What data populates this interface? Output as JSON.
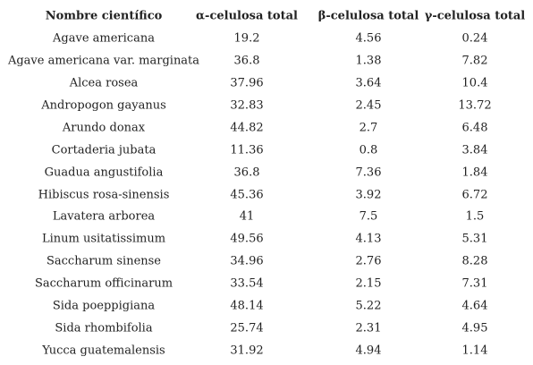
{
  "table": {
    "headers": [
      "Nombre científico",
      "α-celulosa total",
      "β-celulosa total",
      "γ-celulosa total"
    ],
    "rows": [
      [
        "Agave americana",
        "19.2",
        "4.56",
        "0.24"
      ],
      [
        "Agave americana var. marginata",
        "36.8",
        "1.38",
        "7.82"
      ],
      [
        "Alcea rosea",
        "37.96",
        "3.64",
        "10.4"
      ],
      [
        "Andropogon gayanus",
        "32.83",
        "2.45",
        "13.72"
      ],
      [
        "Arundo donax",
        "44.82",
        "2.7",
        "6.48"
      ],
      [
        "Cortaderia jubata",
        "11.36",
        "0.8",
        "3.84"
      ],
      [
        "Guadua angustifolia",
        "36.8",
        "7.36",
        "1.84"
      ],
      [
        "Hibiscus rosa-sinensis",
        "45.36",
        "3.92",
        "6.72"
      ],
      [
        "Lavatera arborea",
        "41",
        "7.5",
        "1.5"
      ],
      [
        "Linum usitatissimum",
        "49.56",
        "4.13",
        "5.31"
      ],
      [
        "Saccharum sinense",
        "34.96",
        "2.76",
        "8.28"
      ],
      [
        "Saccharum officinarum",
        "33.54",
        "2.15",
        "7.31"
      ],
      [
        "Sida poeppigiana",
        "48.14",
        "5.22",
        "4.64"
      ],
      [
        "Sida rhombifolia",
        "25.74",
        "2.31",
        "4.95"
      ],
      [
        "Yucca guatemalensis",
        "31.92",
        "4.94",
        "1.14"
      ]
    ]
  }
}
